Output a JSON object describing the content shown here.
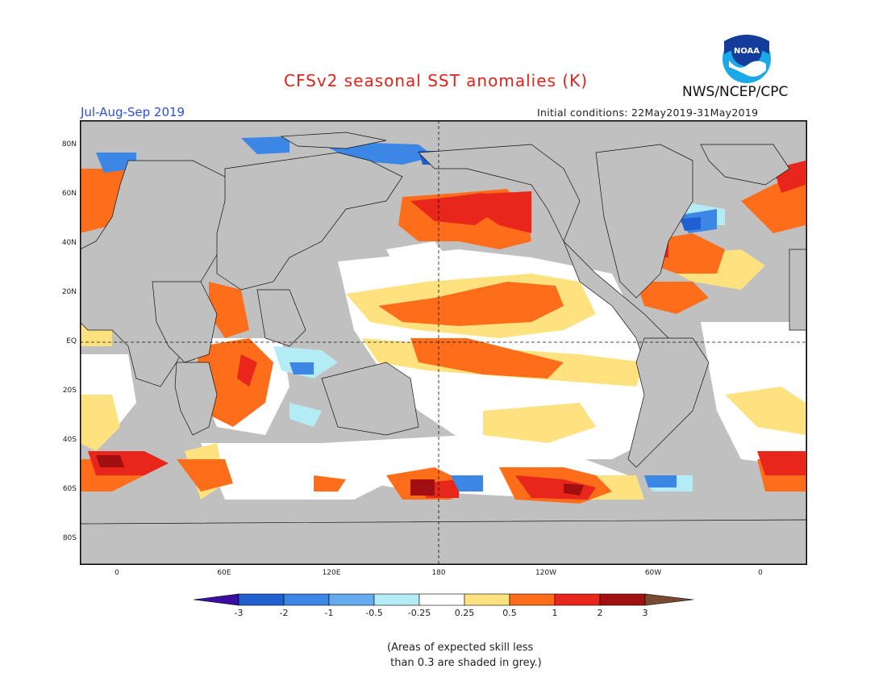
{
  "header": {
    "title": "CFSv2 seasonal SST anomalies (K)",
    "agency": "NWS/NCEP/CPC",
    "season": "Jul-Aug-Sep 2019",
    "initial_conditions": "Initial conditions: 22May2019-31May2019",
    "logo_text": "NOAA"
  },
  "map": {
    "lat_labels": [
      "80N",
      "60N",
      "40N",
      "20N",
      "EQ",
      "20S",
      "40S",
      "60S",
      "80S"
    ],
    "lon_labels": [
      "0",
      "60E",
      "120E",
      "180",
      "120W",
      "60W",
      "0"
    ],
    "colors": {
      "land": "#c0c0c0",
      "grey_skill": "#c0c0c0",
      "ocean_neutral": "#ffffff"
    }
  },
  "colorbar": {
    "labels": [
      "-3",
      "-2",
      "-1",
      "-0.5",
      "-0.25",
      "0.25",
      "0.5",
      "1",
      "2",
      "3"
    ],
    "colors": [
      "#3a0fa0",
      "#1f5fd0",
      "#3c86e6",
      "#66aaf0",
      "#b4ecf5",
      "#ffffff",
      "#fde27f",
      "#fd6d1a",
      "#e8261b",
      "#a10f10",
      "#7a4a30"
    ]
  },
  "note": "(Areas of expected skill less\n than 0.3 are shaded in grey.)"
}
